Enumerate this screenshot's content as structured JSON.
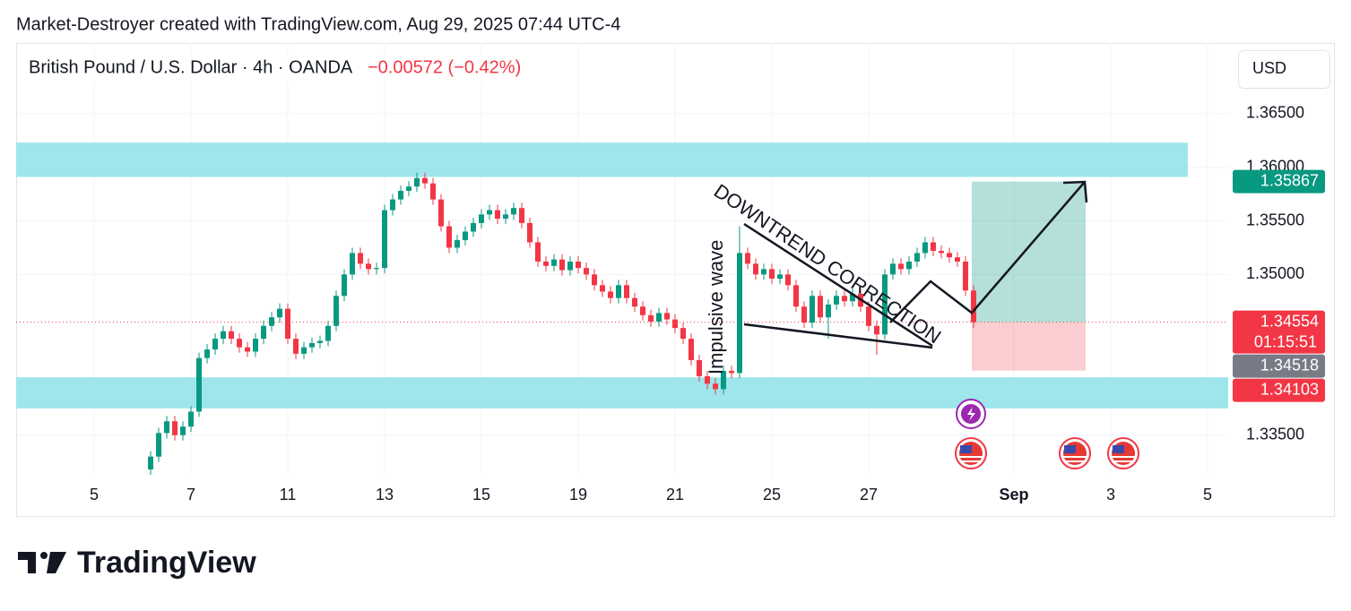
{
  "header": {
    "attribution": "Market-Destroyer created with TradingView.com, Aug 29, 2025 07:44 UTC-4"
  },
  "footer": {
    "logo": "TradingView"
  },
  "chart_data": {
    "type": "candlestick",
    "title": "British Pound / U.S. Dollar · 4h · OANDA",
    "change": "−0.00572 (−0.42%)",
    "currency": "USD",
    "up_color": "#089981",
    "down_color": "#f23645",
    "x": [
      7,
      8,
      9,
      10,
      11,
      12,
      13,
      14,
      15,
      16,
      17,
      18,
      19,
      20,
      21,
      22,
      23,
      24,
      25,
      26,
      27,
      28,
      29,
      30,
      31,
      32,
      33,
      34,
      35,
      36,
      37,
      38,
      39,
      40,
      41,
      42,
      43,
      44,
      45,
      46,
      47,
      48,
      49,
      50,
      51,
      52,
      53,
      54,
      55,
      56,
      57,
      58,
      59,
      60,
      61,
      62,
      63,
      64,
      65,
      66,
      67,
      68,
      69,
      70,
      71,
      72,
      73,
      74,
      75,
      76,
      77,
      78,
      79,
      80,
      81,
      82,
      83,
      84,
      85,
      86,
      87,
      88,
      89,
      90,
      91,
      92,
      93,
      94,
      95,
      96,
      97,
      98,
      99,
      100,
      101,
      102,
      103,
      104,
      105,
      106,
      107,
      108,
      109
    ],
    "open": [
      1.3318,
      1.333,
      1.3352,
      1.3363,
      1.335,
      1.3358,
      1.3372,
      1.3422,
      1.343,
      1.344,
      1.3447,
      1.344,
      1.3432,
      1.3428,
      1.344,
      1.3452,
      1.346,
      1.3468,
      1.344,
      1.3426,
      1.3432,
      1.3436,
      1.3438,
      1.3452,
      1.348,
      1.35,
      1.352,
      1.351,
      1.3505,
      1.3506,
      1.356,
      1.357,
      1.3578,
      1.3582,
      1.359,
      1.3585,
      1.357,
      1.3545,
      1.3525,
      1.3532,
      1.354,
      1.3548,
      1.3556,
      1.356,
      1.3552,
      1.3556,
      1.3562,
      1.3548,
      1.353,
      1.3512,
      1.3508,
      1.3514,
      1.3504,
      1.3512,
      1.3506,
      1.35,
      1.349,
      1.3484,
      1.3478,
      1.349,
      1.3478,
      1.347,
      1.3462,
      1.3456,
      1.3464,
      1.3458,
      1.345,
      1.344,
      1.342,
      1.3405,
      1.3398,
      1.3393,
      1.341,
      1.3408,
      1.352,
      1.351,
      1.35,
      1.3505,
      1.3496,
      1.35,
      1.349,
      1.347,
      1.3455,
      1.348,
      1.346,
      1.3472,
      1.348,
      1.3475,
      1.3482,
      1.347,
      1.3452,
      1.3444,
      1.35,
      1.351,
      1.3505,
      1.3512,
      1.352,
      1.353,
      1.3522,
      1.352,
      1.3516,
      1.3512,
      1.3485
    ],
    "high": [
      1.3335,
      1.3357,
      1.3368,
      1.3368,
      1.3363,
      1.3377,
      1.3427,
      1.3435,
      1.3445,
      1.3452,
      1.3452,
      1.3445,
      1.3437,
      1.3445,
      1.3457,
      1.3465,
      1.3473,
      1.3473,
      1.3445,
      1.3437,
      1.3441,
      1.3443,
      1.3457,
      1.3485,
      1.3505,
      1.3525,
      1.3525,
      1.3515,
      1.3511,
      1.3565,
      1.3575,
      1.3583,
      1.3587,
      1.3595,
      1.3595,
      1.359,
      1.3575,
      1.355,
      1.3537,
      1.3545,
      1.3553,
      1.3561,
      1.3565,
      1.3565,
      1.3561,
      1.3567,
      1.3567,
      1.3553,
      1.3535,
      1.3517,
      1.3519,
      1.3519,
      1.3517,
      1.3517,
      1.3511,
      1.3505,
      1.3495,
      1.3489,
      1.3495,
      1.3495,
      1.3483,
      1.3475,
      1.3467,
      1.3469,
      1.3469,
      1.3463,
      1.3455,
      1.3445,
      1.3425,
      1.341,
      1.3403,
      1.3415,
      1.3415,
      1.3545,
      1.3525,
      1.3515,
      1.351,
      1.351,
      1.3505,
      1.3505,
      1.3495,
      1.3475,
      1.3485,
      1.3485,
      1.3477,
      1.3485,
      1.3485,
      1.3487,
      1.3487,
      1.3475,
      1.3457,
      1.3505,
      1.3515,
      1.3515,
      1.3517,
      1.3525,
      1.3535,
      1.3535,
      1.3527,
      1.3525,
      1.3521,
      1.3517,
      1.349
    ],
    "low": [
      1.3313,
      1.3325,
      1.3347,
      1.3345,
      1.3345,
      1.3353,
      1.3367,
      1.3417,
      1.3425,
      1.3435,
      1.3435,
      1.3427,
      1.3423,
      1.3423,
      1.3435,
      1.3447,
      1.3455,
      1.3435,
      1.3421,
      1.3421,
      1.3427,
      1.3431,
      1.3433,
      1.3447,
      1.3475,
      1.3495,
      1.3505,
      1.35,
      1.35,
      1.3501,
      1.3555,
      1.3565,
      1.3573,
      1.3577,
      1.358,
      1.3565,
      1.354,
      1.352,
      1.352,
      1.3527,
      1.3535,
      1.3543,
      1.3551,
      1.3547,
      1.3547,
      1.3551,
      1.3543,
      1.3525,
      1.3507,
      1.3503,
      1.3503,
      1.3499,
      1.3499,
      1.3501,
      1.3495,
      1.3485,
      1.3479,
      1.3473,
      1.3473,
      1.3473,
      1.3465,
      1.3457,
      1.3451,
      1.3451,
      1.3453,
      1.3445,
      1.3435,
      1.3415,
      1.34,
      1.3393,
      1.3388,
      1.3388,
      1.3403,
      1.3403,
      1.3505,
      1.3495,
      1.3495,
      1.3491,
      1.3491,
      1.3485,
      1.3465,
      1.345,
      1.345,
      1.3455,
      1.344,
      1.3467,
      1.347,
      1.347,
      1.3465,
      1.3447,
      1.3425,
      1.3439,
      1.3495,
      1.35,
      1.35,
      1.3507,
      1.3515,
      1.3517,
      1.3515,
      1.3511,
      1.3507,
      1.348,
      1.345
    ],
    "close": [
      1.333,
      1.3352,
      1.3363,
      1.335,
      1.3358,
      1.3372,
      1.3422,
      1.343,
      1.344,
      1.3447,
      1.344,
      1.3432,
      1.3428,
      1.344,
      1.3452,
      1.346,
      1.3468,
      1.344,
      1.3426,
      1.3432,
      1.3436,
      1.3438,
      1.3452,
      1.348,
      1.35,
      1.352,
      1.351,
      1.3505,
      1.3506,
      1.356,
      1.357,
      1.3578,
      1.3582,
      1.359,
      1.3585,
      1.357,
      1.3545,
      1.3525,
      1.3532,
      1.354,
      1.3548,
      1.3556,
      1.356,
      1.3552,
      1.3556,
      1.3562,
      1.3548,
      1.353,
      1.3512,
      1.3508,
      1.3514,
      1.3504,
      1.3512,
      1.3506,
      1.35,
      1.349,
      1.3484,
      1.3478,
      1.349,
      1.3478,
      1.347,
      1.3462,
      1.3456,
      1.3464,
      1.3458,
      1.345,
      1.344,
      1.342,
      1.3405,
      1.3398,
      1.3393,
      1.341,
      1.3408,
      1.352,
      1.351,
      1.35,
      1.3505,
      1.3496,
      1.35,
      1.349,
      1.347,
      1.3455,
      1.348,
      1.346,
      1.3472,
      1.348,
      1.3475,
      1.3482,
      1.347,
      1.3452,
      1.3444,
      1.35,
      1.351,
      1.3505,
      1.3512,
      1.352,
      1.353,
      1.3522,
      1.352,
      1.3516,
      1.3512,
      1.3485,
      1.34554
    ],
    "xlim": [
      -9.67,
      140.56
    ],
    "xticks": [
      {
        "value": 0,
        "label": "5"
      },
      {
        "value": 12,
        "label": "7"
      },
      {
        "value": 24,
        "label": "11"
      },
      {
        "value": 36,
        "label": "13"
      },
      {
        "value": 48,
        "label": "15"
      },
      {
        "value": 60,
        "label": "19"
      },
      {
        "value": 72,
        "label": "21"
      },
      {
        "value": 84,
        "label": "25"
      },
      {
        "value": 96,
        "label": "27"
      },
      {
        "value": 114,
        "label": "Sep"
      },
      {
        "value": 126,
        "label": "3"
      },
      {
        "value": 138,
        "label": "5"
      }
    ],
    "ylim": [
      1.3313,
      1.3716
    ],
    "yticks": [
      {
        "value": 1.365,
        "label": "1.36500"
      },
      {
        "value": 1.36,
        "label": "1.36000"
      },
      {
        "value": 1.355,
        "label": "1.35500"
      },
      {
        "value": 1.35,
        "label": "1.35000"
      },
      {
        "value": 1.335,
        "label": "1.33500"
      }
    ],
    "grid": true,
    "zones": [
      {
        "from": 1.3591,
        "to": 1.3623,
        "color": "#9ee5ec"
      },
      {
        "from": 1.3375,
        "to": 1.3404,
        "color": "#9ee5ec"
      }
    ],
    "position": {
      "target": 1.35867,
      "entry": 1.34554,
      "stop": 1.34103
    },
    "current_price": 1.34554,
    "countdown": "01:15:51",
    "level_price": 1.34518,
    "annotations": [
      "DOWNTREND CORRECTION",
      "Impulsive wave"
    ]
  }
}
